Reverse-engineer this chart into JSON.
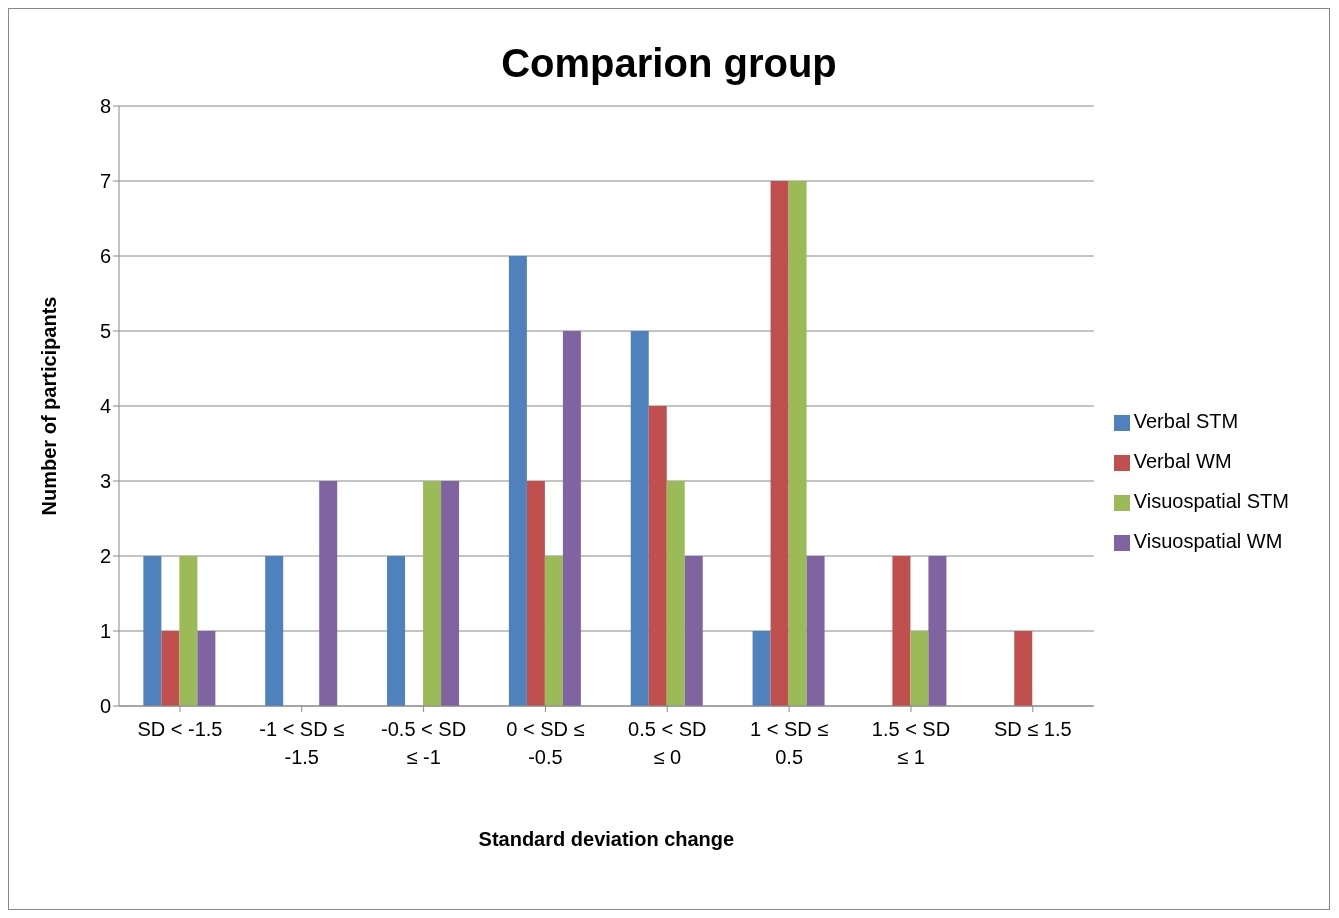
{
  "chart_data": {
    "type": "bar",
    "title": "Comparion group",
    "xlabel": "Standard deviation change",
    "ylabel": "Number of participants",
    "categories": [
      "SD < -1.5",
      "-1 < SD ≤ -1.5",
      "-0.5 < SD ≤ -1",
      "0 < SD ≤ -0.5",
      "0.5 < SD ≤ 0",
      "1 < SD ≤ 0.5",
      "1.5 < SD ≤ 1",
      "SD ≤ 1.5"
    ],
    "series": [
      {
        "name": "Verbal STM",
        "color": "#4f81bd",
        "values": [
          2,
          2,
          2,
          6,
          5,
          1,
          0,
          0
        ]
      },
      {
        "name": "Verbal WM",
        "color": "#c0504d",
        "values": [
          1,
          0,
          0,
          3,
          4,
          7,
          2,
          1
        ]
      },
      {
        "name": "Visuospatial STM",
        "color": "#9bbb59",
        "values": [
          2,
          0,
          3,
          2,
          3,
          7,
          1,
          0
        ]
      },
      {
        "name": "Visuospatial WM",
        "color": "#8064a2",
        "values": [
          1,
          3,
          3,
          5,
          2,
          2,
          2,
          0
        ]
      }
    ],
    "ylim": [
      0,
      8
    ],
    "yticks": [
      0,
      1,
      2,
      3,
      4,
      5,
      6,
      7,
      8
    ],
    "grid": "y",
    "legend": "right"
  }
}
